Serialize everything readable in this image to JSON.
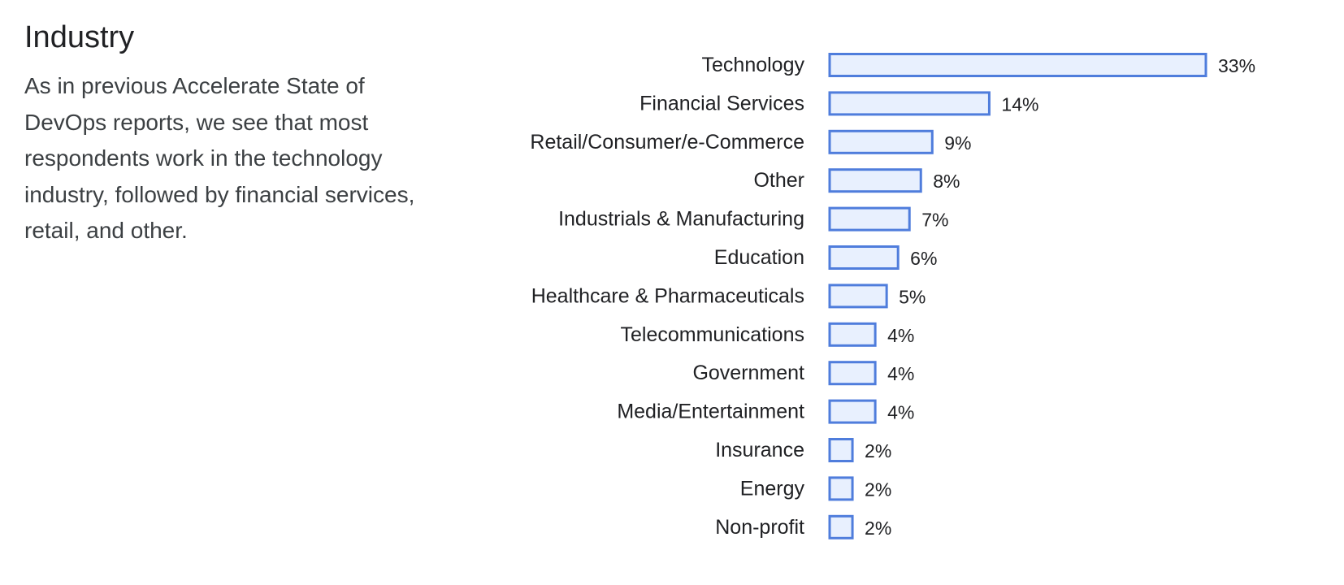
{
  "section": {
    "title": "Industry",
    "description": "As in previous Accelerate State of DevOps reports, we see that most respondents work in the technology industry, followed by financial services, retail, and other."
  },
  "colors": {
    "bar_fill": "#e8f0fe",
    "bar_stroke": "#4f7ddc",
    "text": "#202124"
  },
  "chart_data": {
    "type": "bar",
    "orientation": "horizontal",
    "title": "",
    "xlabel": "",
    "ylabel": "",
    "value_suffix": "%",
    "xlim": [
      0,
      33
    ],
    "grid": false,
    "categories": [
      "Technology",
      "Financial Services",
      "Retail/Consumer/e-Commerce",
      "Other",
      "Industrials & Manufacturing",
      "Education",
      "Healthcare & Pharmaceuticals",
      "Telecommunications",
      "Government",
      "Media/Entertainment",
      "Insurance",
      "Energy",
      "Non-profit"
    ],
    "values": [
      33,
      14,
      9,
      8,
      7,
      6,
      5,
      4,
      4,
      4,
      2,
      2,
      2
    ]
  }
}
